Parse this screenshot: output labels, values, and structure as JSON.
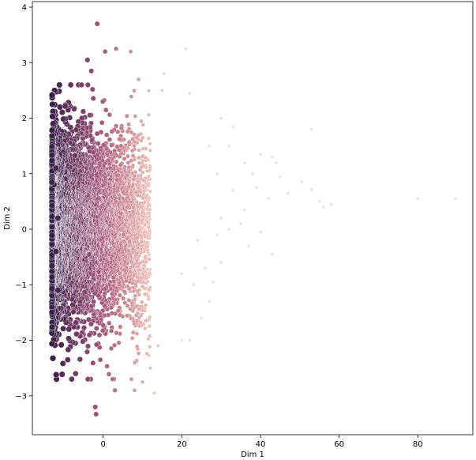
{
  "chart_data": {
    "type": "scatter",
    "title": "",
    "xlabel": "Dim 1",
    "ylabel": "Dim 2",
    "xlim": [
      -18,
      94
    ],
    "ylim": [
      -3.7,
      4.1
    ],
    "xticks": [
      0,
      20,
      40,
      60,
      80
    ],
    "yticks": [
      -3,
      -2,
      -1,
      0,
      1,
      2,
      3,
      4
    ],
    "grid": false,
    "legend": "none",
    "colormap": [
      "#f4dfd8",
      "#e9b9ad",
      "#c97f8c",
      "#a35478",
      "#6f3863",
      "#3c2049"
    ],
    "edge_color": "#ffffff",
    "dense_cloud": {
      "x_range": [
        -13,
        12
      ],
      "y_range": [
        -2.7,
        2.6
      ],
      "point_count_estimate": 5000
    },
    "points": [
      {
        "x": -1.5,
        "y": 3.7
      },
      {
        "x": 0.5,
        "y": 3.2
      },
      {
        "x": 3.3,
        "y": 3.25
      },
      {
        "x": 7,
        "y": 3.2
      },
      {
        "x": 21,
        "y": 3.25
      },
      {
        "x": -4,
        "y": 3.05
      },
      {
        "x": -3,
        "y": 2.85
      },
      {
        "x": -5.5,
        "y": 2.6
      },
      {
        "x": 9,
        "y": 2.7
      },
      {
        "x": 15.5,
        "y": 2.8
      },
      {
        "x": 22,
        "y": 2.45
      },
      {
        "x": -11,
        "y": 2.2
      },
      {
        "x": 15,
        "y": 2.5
      },
      {
        "x": 30,
        "y": 2.0
      },
      {
        "x": 33,
        "y": 1.85
      },
      {
        "x": 53,
        "y": 1.8
      },
      {
        "x": 27,
        "y": 1.5
      },
      {
        "x": 32,
        "y": 1.5
      },
      {
        "x": 40,
        "y": 1.35
      },
      {
        "x": 36,
        "y": 1.2
      },
      {
        "x": 43,
        "y": 1.3
      },
      {
        "x": 44,
        "y": 1.2
      },
      {
        "x": 29,
        "y": 1.0
      },
      {
        "x": 38,
        "y": 1.0
      },
      {
        "x": 45,
        "y": 0.95
      },
      {
        "x": 50.5,
        "y": 0.85
      },
      {
        "x": 39,
        "y": 0.75
      },
      {
        "x": 33,
        "y": 0.7
      },
      {
        "x": 53,
        "y": 0.72
      },
      {
        "x": 47,
        "y": 0.65
      },
      {
        "x": 42,
        "y": 0.55
      },
      {
        "x": 55,
        "y": 0.5
      },
      {
        "x": 80,
        "y": 0.55
      },
      {
        "x": 89.5,
        "y": 0.55
      },
      {
        "x": 58,
        "y": 0.45
      },
      {
        "x": 56,
        "y": 0.4
      },
      {
        "x": 36,
        "y": 0.35
      },
      {
        "x": 30,
        "y": 0.2
      },
      {
        "x": 35,
        "y": 0.1
      },
      {
        "x": 32,
        "y": 0.0
      },
      {
        "x": 40,
        "y": -0.05
      },
      {
        "x": 24,
        "y": -0.2
      },
      {
        "x": 29,
        "y": -0.1
      },
      {
        "x": 37,
        "y": -0.3
      },
      {
        "x": 43,
        "y": -0.45
      },
      {
        "x": 30,
        "y": -0.6
      },
      {
        "x": 26,
        "y": -0.7
      },
      {
        "x": 20,
        "y": -0.8
      },
      {
        "x": 28,
        "y": -0.95
      },
      {
        "x": 23,
        "y": -1.0
      },
      {
        "x": 27,
        "y": -1.3
      },
      {
        "x": 25,
        "y": -1.6
      },
      {
        "x": 20,
        "y": -2.0
      },
      {
        "x": 22,
        "y": -2.0
      },
      {
        "x": 14,
        "y": -2.1
      },
      {
        "x": 12,
        "y": -2.5
      },
      {
        "x": 10,
        "y": -2.75
      },
      {
        "x": 13,
        "y": -2.95
      },
      {
        "x": 8,
        "y": -2.9
      },
      {
        "x": 3,
        "y": -2.9
      },
      {
        "x": -2,
        "y": -3.2
      },
      {
        "x": -1.8,
        "y": -3.33
      },
      {
        "x": -12.5,
        "y": 0.8
      },
      {
        "x": -13,
        "y": 0.85
      },
      {
        "x": -12,
        "y": 1.1
      },
      {
        "x": -11.5,
        "y": 0.2
      },
      {
        "x": -12,
        "y": -0.4
      },
      {
        "x": -11.5,
        "y": -1.1
      },
      {
        "x": -9,
        "y": -2.35
      },
      {
        "x": -7,
        "y": -2.6
      }
    ]
  }
}
